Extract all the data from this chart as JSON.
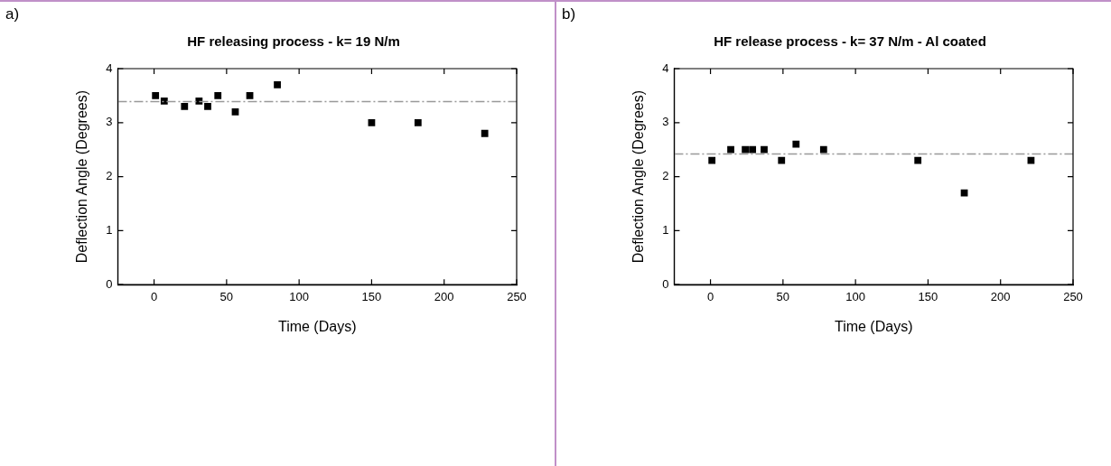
{
  "chart_data": [
    {
      "type": "scatter",
      "title": "HF releasing process - k= 19 N/m",
      "xlabel": "Time (Days)",
      "ylabel": "Deflection Angle (Degrees)",
      "annotations": [
        "a)"
      ],
      "x": [
        1,
        7,
        21,
        31,
        37,
        44,
        56,
        66,
        85,
        150,
        182,
        228
      ],
      "series": [
        {
          "color": "#000000",
          "values": [
            3.5,
            3.4,
            3.3,
            3.4,
            3.3,
            3.5,
            3.2,
            3.5,
            3.7,
            3.0,
            3.0,
            2.8
          ]
        }
      ],
      "xlim": [
        -25,
        250
      ],
      "xticks": [
        0,
        50,
        100,
        150,
        200,
        250
      ],
      "ylim": [
        0,
        4
      ],
      "yticks": [
        0,
        1,
        2,
        3,
        4
      ],
      "marker": "square",
      "legend": false,
      "grid": false,
      "ref_lines": [
        {
          "axis": "y",
          "value": 3.39,
          "color": "#999999",
          "line_style": "dashed"
        }
      ]
    },
    {
      "type": "scatter",
      "title": "HF release process - k= 37 N/m - Al coated",
      "xlabel": "Time (Days)",
      "ylabel": "Deflection Angle (Degrees)",
      "annotations": [
        "b)"
      ],
      "x": [
        1,
        14,
        24,
        29,
        37,
        49,
        59,
        78,
        143,
        175,
        221
      ],
      "series": [
        {
          "color": "#000000",
          "values": [
            2.3,
            2.5,
            2.5,
            2.5,
            2.5,
            2.3,
            2.6,
            2.5,
            2.3,
            1.7,
            2.3
          ]
        }
      ],
      "xlim": [
        -25,
        250
      ],
      "xticks": [
        0,
        50,
        100,
        150,
        200,
        250
      ],
      "ylim": [
        0,
        4
      ],
      "yticks": [
        0,
        1,
        2,
        3,
        4
      ],
      "marker": "square",
      "legend": false,
      "grid": false,
      "ref_lines": [
        {
          "axis": "y",
          "value": 2.42,
          "color": "#999999",
          "line_style": "dashed"
        }
      ]
    }
  ]
}
